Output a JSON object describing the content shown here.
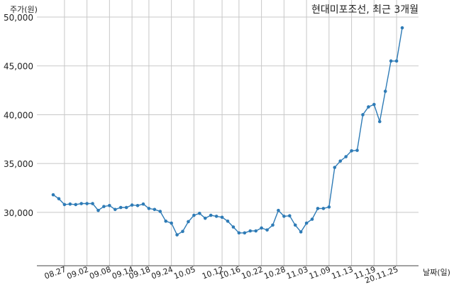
{
  "chart_data": {
    "type": "line",
    "title": "현대미포조선, 최근 3개월",
    "ylabel": "주가(원)",
    "xlabel": "날짜(일)",
    "ylim": [
      26500,
      50000
    ],
    "yticks": [
      30000,
      35000,
      40000,
      45000,
      50000
    ],
    "ytick_labels": [
      "30,000",
      "35,000",
      "40,000",
      "45,000",
      "50,000"
    ],
    "xtick_labels": [
      "08.27",
      "09.02",
      "09.08",
      "09.14",
      "09.18",
      "09.24",
      "10.05",
      "10.12",
      "10.16",
      "10.22",
      "10.28",
      "11.03",
      "11.09",
      "11.13",
      "11.19",
      "20.11.25"
    ],
    "xtick_index": [
      2,
      6,
      10,
      14,
      17,
      21,
      25,
      30,
      33,
      37,
      41,
      45,
      49,
      53,
      57,
      61
    ],
    "grid": true,
    "line_color": "#2e7bb6",
    "series": [
      {
        "values": [
          31800,
          31400,
          30800,
          30850,
          30800,
          30900,
          30900,
          30900,
          30200,
          30600,
          30700,
          30300,
          30500,
          30500,
          30750,
          30700,
          30850,
          30400,
          30300,
          30100,
          29100,
          28900,
          27700,
          28050,
          29050,
          29700,
          29900,
          29400,
          29700,
          29600,
          29500,
          29100,
          28500,
          27900,
          27900,
          28100,
          28100,
          28400,
          28200,
          28700,
          30200,
          29600,
          29650,
          28700,
          28000,
          28900,
          29300,
          30400,
          30400,
          30550,
          34600,
          35250,
          35700,
          36300,
          36350,
          40000,
          40800,
          41050,
          39300,
          42400,
          45500,
          45500,
          48900
        ]
      }
    ]
  }
}
